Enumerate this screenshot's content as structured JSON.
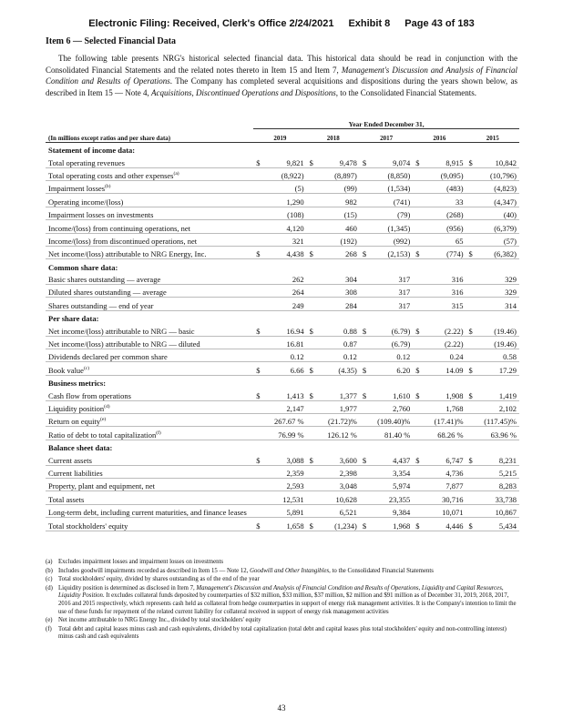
{
  "header": {
    "filing": "Electronic Filing: Received, Clerk's Office 2/24/2021",
    "exhibit": "Exhibit 8",
    "page": "Page 43 of 183"
  },
  "title": "Item 6 — Selected Financial Data",
  "intro": [
    {
      "text": "The following table presents NRG's historical selected financial data. This historical data should be read in conjunction with the Consolidated Financial Statements and the related notes thereto in Item 15 and Item 7, ",
      "italic": false
    },
    {
      "text": "Management's Discussion and Analysis of Financial Condition and Results of Operations",
      "italic": true
    },
    {
      "text": ". The Company has completed several acquisitions and dispositions during the years shown below, as described in Item 15 — Note 4, ",
      "italic": false
    },
    {
      "text": "Acquisitions, Discontinued Operations and Dispositions",
      "italic": true
    },
    {
      "text": ", to the Consolidated Financial Statements.",
      "italic": false
    }
  ],
  "table": {
    "period_header": "Year Ended December 31,",
    "columns": [
      "(In millions except ratios and per share data)",
      "2019",
      "2018",
      "2017",
      "2016",
      "2015"
    ],
    "rows": [
      {
        "section": "Statement of income data:"
      },
      {
        "label": "Total operating revenues",
        "currency": "$",
        "values": [
          "9,821",
          "9,478",
          "9,074",
          "8,915",
          "10,842"
        ]
      },
      {
        "label": "Total operating costs and other expenses",
        "note": "(a)",
        "values": [
          "(8,922)",
          "(8,897)",
          "(8,850)",
          "(9,095)",
          "(10,796)"
        ]
      },
      {
        "label": "Impairment losses",
        "note": "(b)",
        "values": [
          "(5)",
          "(99)",
          "(1,534)",
          "(483)",
          "(4,823)"
        ]
      },
      {
        "label": "Operating income/(loss)",
        "values": [
          "1,290",
          "982",
          "(741)",
          "33",
          "(4,347)"
        ]
      },
      {
        "label": "Impairment losses on investments",
        "values": [
          "(108)",
          "(15)",
          "(79)",
          "(268)",
          "(40)"
        ]
      },
      {
        "label": "Income/(loss) from continuing operations, net",
        "values": [
          "4,120",
          "460",
          "(1,345)",
          "(956)",
          "(6,379)"
        ]
      },
      {
        "label": "Income/(loss) from discontinued operations, net",
        "values": [
          "321",
          "(192)",
          "(992)",
          "65",
          "(57)"
        ]
      },
      {
        "label": "Net income/(loss) attributable to NRG Energy, Inc.",
        "currency": "$",
        "values": [
          "4,438",
          "268",
          "(2,153)",
          "(774)",
          "(6,382)"
        ]
      },
      {
        "section": "Common share data:"
      },
      {
        "label": "Basic shares outstanding — average",
        "values": [
          "262",
          "304",
          "317",
          "316",
          "329"
        ]
      },
      {
        "label": "Diluted shares outstanding — average",
        "values": [
          "264",
          "308",
          "317",
          "316",
          "329"
        ]
      },
      {
        "label": "Shares outstanding — end of year",
        "values": [
          "249",
          "284",
          "317",
          "315",
          "314"
        ]
      },
      {
        "section": "Per share data:"
      },
      {
        "label": "Net income/(loss) attributable to NRG — basic",
        "currency": "$",
        "values": [
          "16.94",
          "0.88",
          "(6.79)",
          "(2.22)",
          "(19.46)"
        ]
      },
      {
        "label": "Net income/(loss) attributable to NRG — diluted",
        "values": [
          "16.81",
          "0.87",
          "(6.79)",
          "(2.22)",
          "(19.46)"
        ]
      },
      {
        "label": "Dividends declared per common share",
        "values": [
          "0.12",
          "0.12",
          "0.12",
          "0.24",
          "0.58"
        ]
      },
      {
        "label": "Book value",
        "note": "(c)",
        "currency": "$",
        "values": [
          "6.66",
          "(4.35)",
          "6.20",
          "14.09",
          "17.29"
        ]
      },
      {
        "section": "Business metrics:"
      },
      {
        "label": "Cash flow from operations",
        "currency": "$",
        "values": [
          "1,413",
          "1,377",
          "1,610",
          "1,908",
          "1,419"
        ]
      },
      {
        "label": "Liquidity position",
        "note": "(d)",
        "values": [
          "2,147",
          "1,977",
          "2,760",
          "1,768",
          "2,102"
        ]
      },
      {
        "label": "Return on equity",
        "note": "(e)",
        "values": [
          "267.67 %",
          "(21.72)%",
          "(109.40)%",
          "(17.41)%",
          "(117.45)%"
        ]
      },
      {
        "label": "Ratio of debt to total capitalization",
        "note": "(f)",
        "values": [
          "76.99 %",
          "126.12 %",
          "81.40 %",
          "68.26 %",
          "63.96 %"
        ]
      },
      {
        "section": "Balance sheet data:"
      },
      {
        "label": "Current assets",
        "currency": "$",
        "values": [
          "3,088",
          "3,600",
          "4,437",
          "6,747",
          "8,231"
        ]
      },
      {
        "label": "Current liabilities",
        "values": [
          "2,359",
          "2,398",
          "3,354",
          "4,736",
          "5,215"
        ]
      },
      {
        "label": "Property, plant and equipment, net",
        "values": [
          "2,593",
          "3,048",
          "5,974",
          "7,877",
          "8,283"
        ]
      },
      {
        "label": "Total assets",
        "values": [
          "12,531",
          "10,628",
          "23,355",
          "30,716",
          "33,738"
        ]
      },
      {
        "label": "Long-term debt, including current maturities, and finance leases",
        "values": [
          "5,891",
          "6,521",
          "9,384",
          "10,071",
          "10,867"
        ]
      },
      {
        "label": "Total stockholders' equity",
        "currency": "$",
        "values": [
          "1,658",
          "(1,234)",
          "1,968",
          "4,446",
          "5,434"
        ]
      }
    ]
  },
  "footnotes": [
    {
      "mark": "(a)",
      "parts": [
        {
          "text": "Excludes impairment losses and impairment losses on investments",
          "italic": false
        }
      ]
    },
    {
      "mark": "(b)",
      "parts": [
        {
          "text": "Includes goodwill impairments recorded as described in Item 15 — Note 12, ",
          "italic": false
        },
        {
          "text": "Goodwill and Other Intangibles",
          "italic": true
        },
        {
          "text": ", to the Consolidated Financial Statements",
          "italic": false
        }
      ]
    },
    {
      "mark": "(c)",
      "parts": [
        {
          "text": "Total stockholders' equity, divided by shares outstanding as of the end of the year",
          "italic": false
        }
      ]
    },
    {
      "mark": "(d)",
      "parts": [
        {
          "text": "Liquidity position is determined as disclosed in Item 7, ",
          "italic": false
        },
        {
          "text": "Management's Discussion and Analysis of Financial Condition and Results of Operations, Liquidity and Capital Resources, Liquidity Position",
          "italic": true
        },
        {
          "text": ". It excludes collateral funds deposited by counterparties of $32 million, $33 million, $37 million, $2 million and $91 million as of December 31, 2019, 2018, 2017, 2016 and 2015 respectively, which represents cash held as collateral from hedge counterparties in support of energy risk management activities. It is the Company's intention to limit the use of these funds for repayment of the related current liability for collateral received in support of energy risk management activities",
          "italic": false
        }
      ]
    },
    {
      "mark": "(e)",
      "parts": [
        {
          "text": "Net income attributable to NRG Energy Inc., divided by total stockholders' equity",
          "italic": false
        }
      ]
    },
    {
      "mark": "(f)",
      "parts": [
        {
          "text": "Total debt and capital leases minus cash and cash equivalents, divided by total capitalization (total debt and capital leases plus total stockholders' equity and non-controlling interest) minus cash and cash equivalents",
          "italic": false
        }
      ]
    }
  ],
  "page_number": "43"
}
